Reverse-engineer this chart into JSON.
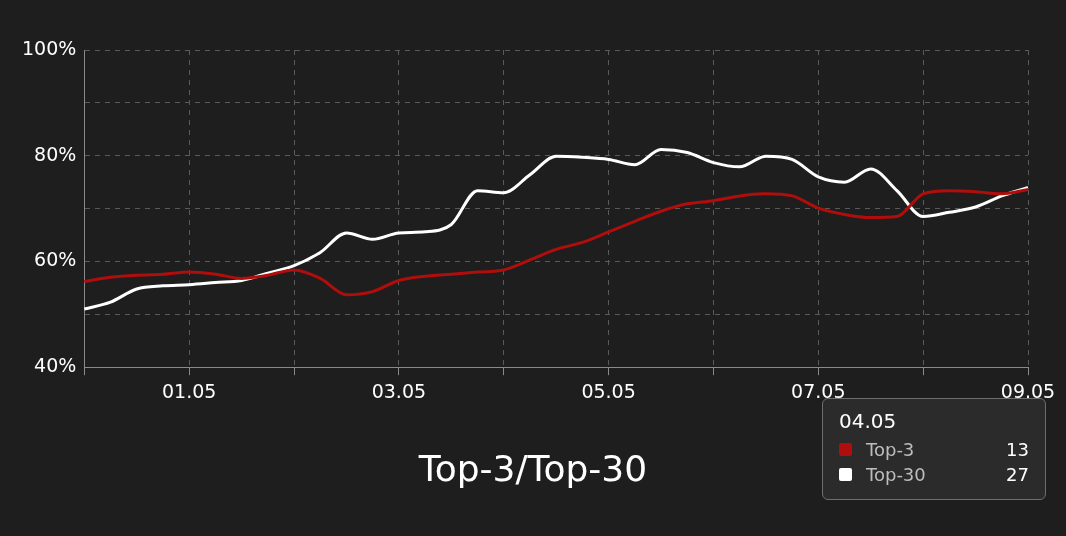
{
  "chart_data": {
    "type": "line",
    "title": "Top-3/Top-30",
    "categories": [
      null,
      null,
      null,
      null,
      "01.05",
      null,
      null,
      null,
      null,
      null,
      null,
      null,
      "03.05",
      null,
      null,
      null,
      null,
      null,
      null,
      null,
      "05.05",
      null,
      null,
      null,
      null,
      null,
      null,
      null,
      "07.05",
      null,
      null,
      null,
      null,
      null,
      null,
      null,
      "09.05"
    ],
    "series": [
      {
        "name": "Top-3",
        "color": "#b00d0d",
        "values": [
          56.2,
          57,
          57.4,
          57.6,
          58,
          57.6,
          56.8,
          57.4,
          58.4,
          56.8,
          53.7,
          54.3,
          56.4,
          57.2,
          57.6,
          58,
          58.4,
          60.3,
          62.3,
          63.6,
          65.6,
          67.6,
          69.5,
          70.9,
          71.5,
          72.4,
          72.8,
          72.4,
          70.1,
          68.9,
          68.3,
          68.5,
          72.8,
          73.4,
          73.2,
          72.8,
          73.6
        ]
      },
      {
        "name": "Top-30",
        "color": "#ffffff",
        "values": [
          51,
          52.3,
          54.8,
          55.4,
          55.6,
          56,
          56.4,
          57.8,
          59.2,
          61.7,
          65.4,
          64.2,
          65.4,
          65.6,
          67,
          73.4,
          73,
          76.4,
          79.9,
          79.7,
          79.3,
          78.3,
          81.2,
          80.6,
          78.7,
          77.9,
          79.9,
          79.3,
          76,
          75,
          77.5,
          73.4,
          68.5,
          69.3,
          70.3,
          72.4,
          74
        ]
      }
    ],
    "ylim": [
      40,
      100
    ],
    "yticks": [
      {
        "value": 40,
        "label": "40%"
      },
      {
        "value": 50,
        "label": null
      },
      {
        "value": 60,
        "label": "60%"
      },
      {
        "value": 70,
        "label": null
      },
      {
        "value": 80,
        "label": "80%"
      },
      {
        "value": 90,
        "label": null
      },
      {
        "value": 100,
        "label": "100%"
      }
    ],
    "grid": true,
    "legend": "bottom right",
    "marker": "none",
    "line_style": "solid",
    "annotations": [
      "04.05",
      "13",
      "27"
    ]
  }
}
